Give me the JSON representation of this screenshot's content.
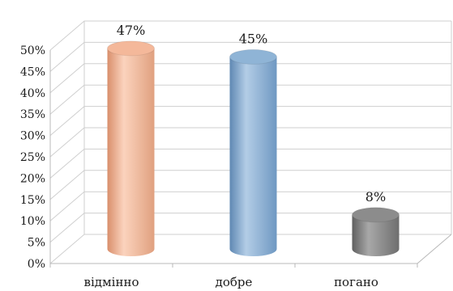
{
  "chart_data": {
    "type": "bar",
    "style": "3d-cylinder",
    "title": "",
    "xlabel": "",
    "ylabel": "",
    "categories": [
      "відмінно",
      "добре",
      "погано"
    ],
    "values": [
      47,
      45,
      8
    ],
    "data_labels": [
      "47%",
      "45%",
      "8%"
    ],
    "colors": [
      "#f4b89a",
      "#8fb4d6",
      "#8c8c8c"
    ],
    "ylim": [
      0,
      50
    ],
    "y_ticks": [
      0,
      5,
      10,
      15,
      20,
      25,
      30,
      35,
      40,
      45,
      50
    ],
    "y_tick_labels": [
      "0%",
      "5%",
      "10%",
      "15%",
      "20%",
      "25%",
      "30%",
      "35%",
      "40%",
      "45%",
      "50%"
    ],
    "grid": true,
    "legend": "none"
  }
}
